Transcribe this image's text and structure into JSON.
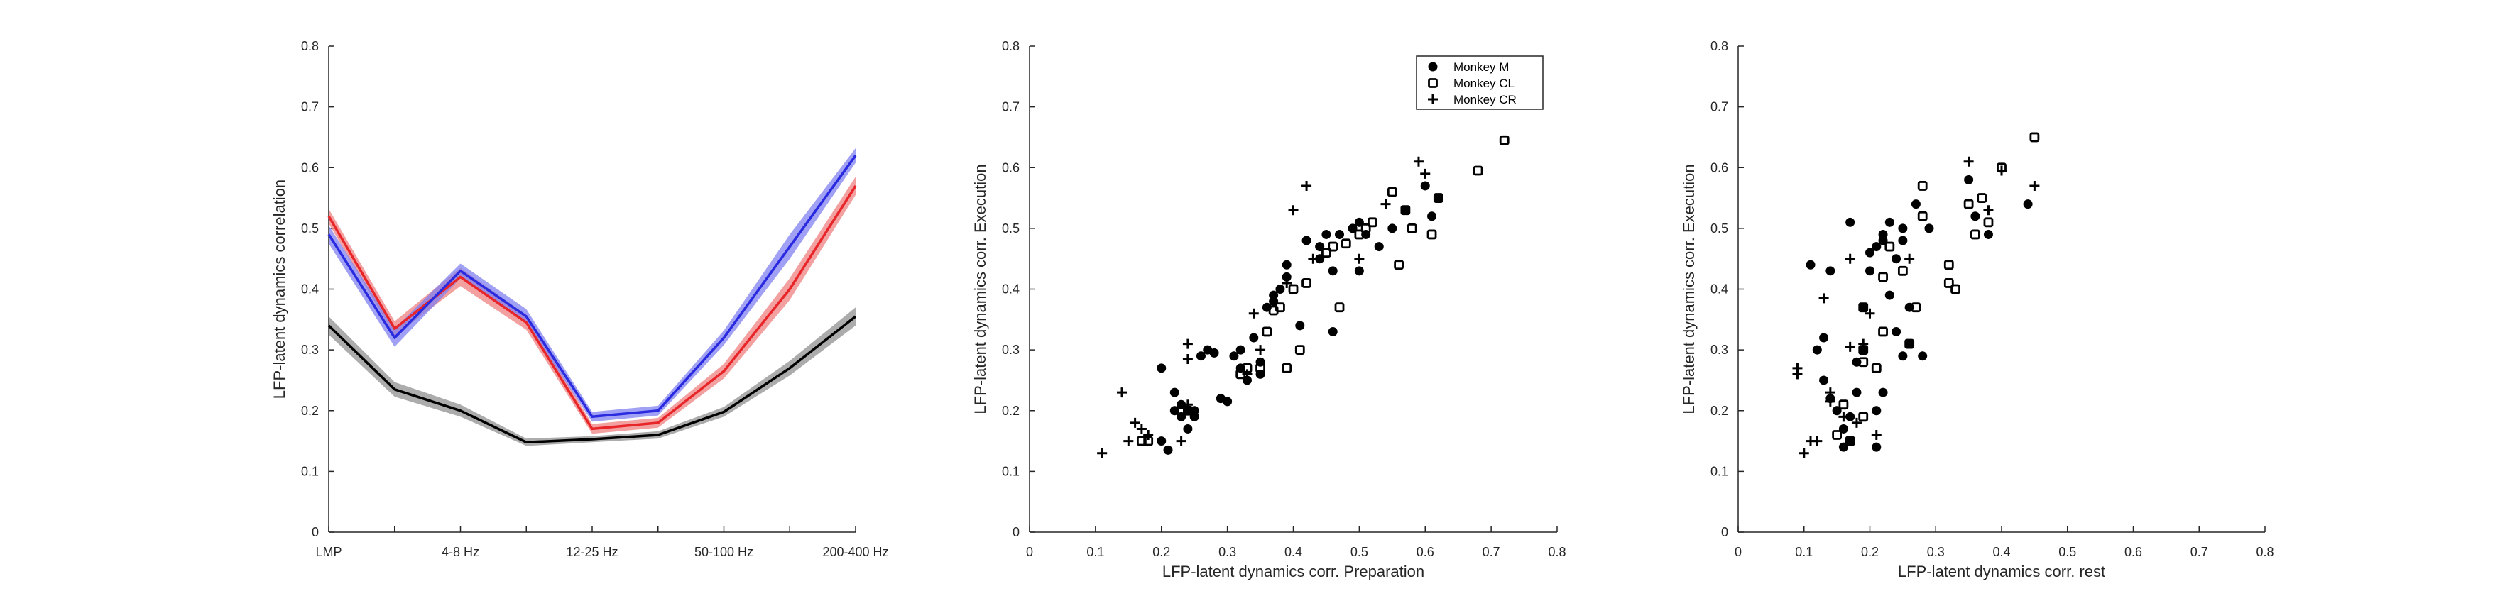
{
  "chart_data": [
    {
      "type": "line",
      "title": "",
      "xlabel": "",
      "ylabel": "LFP-latent dynamics correlation",
      "ylim": [
        0,
        0.8
      ],
      "yticks": [
        "0",
        "0.1",
        "0.2",
        "0.3",
        "0.4",
        "0.5",
        "0.6",
        "0.7",
        "0.8"
      ],
      "categories": [
        "LMP",
        "",
        "4-8 Hz",
        "",
        "12-25 Hz",
        "",
        "50-100 Hz",
        "",
        "200-400 Hz"
      ],
      "xtick_labels": [
        "LMP",
        "4-8 Hz",
        "12-25 Hz",
        "50-100 Hz",
        "200-400 Hz"
      ],
      "grid": false,
      "series": [
        {
          "color": "#e8262a",
          "band_color": "#ef8080",
          "values": [
            0.52,
            0.335,
            0.42,
            0.345,
            0.17,
            0.18,
            0.265,
            0.4,
            0.57
          ],
          "band": [
            0.012,
            0.012,
            0.015,
            0.012,
            0.008,
            0.008,
            0.012,
            0.018,
            0.015
          ]
        },
        {
          "color": "#2a2ae0",
          "band_color": "#8080f0",
          "values": [
            0.49,
            0.32,
            0.43,
            0.355,
            0.19,
            0.2,
            0.32,
            0.47,
            0.62
          ],
          "band": [
            0.015,
            0.015,
            0.012,
            0.012,
            0.008,
            0.008,
            0.012,
            0.02,
            0.012
          ]
        },
        {
          "color": "#000000",
          "band_color": "#909090",
          "values": [
            0.34,
            0.235,
            0.2,
            0.148,
            0.153,
            0.16,
            0.198,
            0.27,
            0.355
          ],
          "band": [
            0.015,
            0.012,
            0.01,
            0.006,
            0.005,
            0.006,
            0.008,
            0.012,
            0.015
          ]
        }
      ]
    },
    {
      "type": "scatter",
      "title": "",
      "xlabel": "LFP-latent dynamics corr. Preparation",
      "ylabel": "LFP-latent dynamics corr. Execution",
      "xlim": [
        0,
        0.8
      ],
      "ylim": [
        0,
        0.8
      ],
      "xticks": [
        "0",
        "0.1",
        "0.2",
        "0.3",
        "0.4",
        "0.5",
        "0.6",
        "0.7",
        "0.8"
      ],
      "yticks": [
        "0",
        "0.1",
        "0.2",
        "0.3",
        "0.4",
        "0.5",
        "0.6",
        "0.7",
        "0.8"
      ],
      "grid": false,
      "legend_position": "top-right",
      "series": [
        {
          "name": "Monkey M",
          "marker": "dot",
          "points": [
            [
              0.2,
              0.27
            ],
            [
              0.2,
              0.15
            ],
            [
              0.21,
              0.135
            ],
            [
              0.22,
              0.2
            ],
            [
              0.22,
              0.23
            ],
            [
              0.23,
              0.19
            ],
            [
              0.23,
              0.21
            ],
            [
              0.24,
              0.2
            ],
            [
              0.24,
              0.17
            ],
            [
              0.25,
              0.2
            ],
            [
              0.25,
              0.19
            ],
            [
              0.26,
              0.29
            ],
            [
              0.27,
              0.3
            ],
            [
              0.28,
              0.295
            ],
            [
              0.29,
              0.22
            ],
            [
              0.3,
              0.215
            ],
            [
              0.31,
              0.29
            ],
            [
              0.32,
              0.27
            ],
            [
              0.32,
              0.3
            ],
            [
              0.33,
              0.25
            ],
            [
              0.34,
              0.32
            ],
            [
              0.35,
              0.26
            ],
            [
              0.35,
              0.28
            ],
            [
              0.36,
              0.37
            ],
            [
              0.37,
              0.39
            ],
            [
              0.37,
              0.38
            ],
            [
              0.38,
              0.4
            ],
            [
              0.39,
              0.42
            ],
            [
              0.39,
              0.44
            ],
            [
              0.41,
              0.34
            ],
            [
              0.42,
              0.48
            ],
            [
              0.44,
              0.47
            ],
            [
              0.44,
              0.45
            ],
            [
              0.45,
              0.49
            ],
            [
              0.46,
              0.43
            ],
            [
              0.46,
              0.33
            ],
            [
              0.47,
              0.49
            ],
            [
              0.49,
              0.5
            ],
            [
              0.5,
              0.43
            ],
            [
              0.5,
              0.51
            ],
            [
              0.51,
              0.49
            ],
            [
              0.53,
              0.47
            ],
            [
              0.55,
              0.5
            ],
            [
              0.57,
              0.53
            ],
            [
              0.6,
              0.57
            ],
            [
              0.61,
              0.52
            ],
            [
              0.62,
              0.55
            ]
          ]
        },
        {
          "name": "Monkey CL",
          "marker": "square",
          "points": [
            [
              0.17,
              0.15
            ],
            [
              0.18,
              0.15
            ],
            [
              0.24,
              0.2
            ],
            [
              0.32,
              0.26
            ],
            [
              0.33,
              0.27
            ],
            [
              0.35,
              0.27
            ],
            [
              0.36,
              0.33
            ],
            [
              0.37,
              0.365
            ],
            [
              0.38,
              0.37
            ],
            [
              0.39,
              0.27
            ],
            [
              0.4,
              0.4
            ],
            [
              0.41,
              0.3
            ],
            [
              0.42,
              0.41
            ],
            [
              0.45,
              0.46
            ],
            [
              0.46,
              0.47
            ],
            [
              0.47,
              0.37
            ],
            [
              0.48,
              0.475
            ],
            [
              0.5,
              0.49
            ],
            [
              0.51,
              0.5
            ],
            [
              0.52,
              0.51
            ],
            [
              0.55,
              0.56
            ],
            [
              0.56,
              0.44
            ],
            [
              0.57,
              0.53
            ],
            [
              0.58,
              0.5
            ],
            [
              0.61,
              0.49
            ],
            [
              0.62,
              0.55
            ],
            [
              0.68,
              0.595
            ],
            [
              0.72,
              0.645
            ]
          ]
        },
        {
          "name": "Monkey CR",
          "marker": "plus",
          "points": [
            [
              0.11,
              0.13
            ],
            [
              0.14,
              0.23
            ],
            [
              0.15,
              0.15
            ],
            [
              0.16,
              0.18
            ],
            [
              0.17,
              0.17
            ],
            [
              0.18,
              0.16
            ],
            [
              0.23,
              0.15
            ],
            [
              0.24,
              0.21
            ],
            [
              0.24,
              0.31
            ],
            [
              0.24,
              0.285
            ],
            [
              0.33,
              0.26
            ],
            [
              0.34,
              0.36
            ],
            [
              0.35,
              0.3
            ],
            [
              0.39,
              0.41
            ],
            [
              0.4,
              0.53
            ],
            [
              0.42,
              0.57
            ],
            [
              0.43,
              0.45
            ],
            [
              0.5,
              0.45
            ],
            [
              0.54,
              0.54
            ],
            [
              0.59,
              0.61
            ],
            [
              0.6,
              0.59
            ]
          ]
        }
      ]
    },
    {
      "type": "scatter",
      "title": "",
      "xlabel": "LFP-latent dynamics corr. rest",
      "ylabel": "LFP-latent dynamics corr. Execution",
      "xlim": [
        0,
        0.8
      ],
      "ylim": [
        0,
        0.8
      ],
      "xticks": [
        "0",
        "0.1",
        "0.2",
        "0.3",
        "0.4",
        "0.5",
        "0.6",
        "0.7",
        "0.8"
      ],
      "yticks": [
        "0",
        "0.1",
        "0.2",
        "0.3",
        "0.4",
        "0.5",
        "0.6",
        "0.7",
        "0.8"
      ],
      "grid": false,
      "series": [
        {
          "name": "Monkey M",
          "marker": "dot",
          "points": [
            [
              0.11,
              0.44
            ],
            [
              0.12,
              0.3
            ],
            [
              0.13,
              0.32
            ],
            [
              0.13,
              0.25
            ],
            [
              0.14,
              0.43
            ],
            [
              0.14,
              0.22
            ],
            [
              0.15,
              0.2
            ],
            [
              0.16,
              0.14
            ],
            [
              0.16,
              0.17
            ],
            [
              0.17,
              0.19
            ],
            [
              0.17,
              0.51
            ],
            [
              0.17,
              0.15
            ],
            [
              0.18,
              0.23
            ],
            [
              0.18,
              0.28
            ],
            [
              0.19,
              0.3
            ],
            [
              0.19,
              0.37
            ],
            [
              0.2,
              0.46
            ],
            [
              0.2,
              0.43
            ],
            [
              0.21,
              0.2
            ],
            [
              0.21,
              0.14
            ],
            [
              0.21,
              0.47
            ],
            [
              0.22,
              0.48
            ],
            [
              0.22,
              0.49
            ],
            [
              0.22,
              0.23
            ],
            [
              0.23,
              0.51
            ],
            [
              0.23,
              0.39
            ],
            [
              0.24,
              0.45
            ],
            [
              0.24,
              0.33
            ],
            [
              0.25,
              0.29
            ],
            [
              0.25,
              0.48
            ],
            [
              0.25,
              0.5
            ],
            [
              0.26,
              0.37
            ],
            [
              0.26,
              0.31
            ],
            [
              0.27,
              0.54
            ],
            [
              0.28,
              0.29
            ],
            [
              0.29,
              0.5
            ],
            [
              0.35,
              0.58
            ],
            [
              0.36,
              0.52
            ],
            [
              0.38,
              0.49
            ],
            [
              0.44,
              0.54
            ]
          ]
        },
        {
          "name": "Monkey CL",
          "marker": "square",
          "points": [
            [
              0.15,
              0.16
            ],
            [
              0.16,
              0.21
            ],
            [
              0.17,
              0.15
            ],
            [
              0.19,
              0.3
            ],
            [
              0.19,
              0.19
            ],
            [
              0.19,
              0.28
            ],
            [
              0.19,
              0.37
            ],
            [
              0.21,
              0.27
            ],
            [
              0.22,
              0.33
            ],
            [
              0.22,
              0.42
            ],
            [
              0.23,
              0.47
            ],
            [
              0.25,
              0.43
            ],
            [
              0.26,
              0.31
            ],
            [
              0.27,
              0.37
            ],
            [
              0.28,
              0.52
            ],
            [
              0.28,
              0.57
            ],
            [
              0.32,
              0.41
            ],
            [
              0.32,
              0.44
            ],
            [
              0.33,
              0.4
            ],
            [
              0.35,
              0.54
            ],
            [
              0.36,
              0.49
            ],
            [
              0.37,
              0.55
            ],
            [
              0.38,
              0.51
            ],
            [
              0.4,
              0.6
            ],
            [
              0.45,
              0.65
            ]
          ]
        },
        {
          "name": "Monkey CR",
          "marker": "plus",
          "points": [
            [
              0.09,
              0.26
            ],
            [
              0.09,
              0.27
            ],
            [
              0.1,
              0.13
            ],
            [
              0.11,
              0.15
            ],
            [
              0.12,
              0.15
            ],
            [
              0.14,
              0.23
            ],
            [
              0.14,
              0.215
            ],
            [
              0.16,
              0.19
            ],
            [
              0.17,
              0.305
            ],
            [
              0.17,
              0.45
            ],
            [
              0.18,
              0.18
            ],
            [
              0.19,
              0.31
            ],
            [
              0.2,
              0.36
            ],
            [
              0.21,
              0.16
            ],
            [
              0.26,
              0.45
            ],
            [
              0.35,
              0.61
            ],
            [
              0.38,
              0.53
            ],
            [
              0.4,
              0.595
            ],
            [
              0.45,
              0.57
            ],
            [
              0.13,
              0.385
            ]
          ]
        }
      ]
    }
  ]
}
